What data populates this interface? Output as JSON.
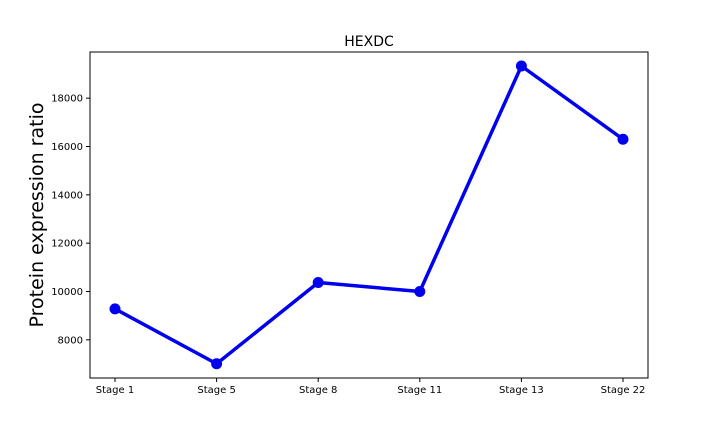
{
  "chart_data": {
    "type": "line",
    "title": "HEXDC",
    "xlabel": "",
    "ylabel": "Protein expression ratio",
    "categories": [
      "Stage 1",
      "Stage 5",
      "Stage 8",
      "Stage 11",
      "Stage 13",
      "Stage 22"
    ],
    "series": [
      {
        "values": [
          9280,
          7010,
          10370,
          10000,
          19330,
          16300
        ],
        "color": "#0000ee"
      }
    ],
    "ylim": [
      6420,
      19910
    ],
    "yticks": [
      8000,
      10000,
      12000,
      14000,
      16000,
      18000
    ],
    "grid": false,
    "legend": "none"
  }
}
